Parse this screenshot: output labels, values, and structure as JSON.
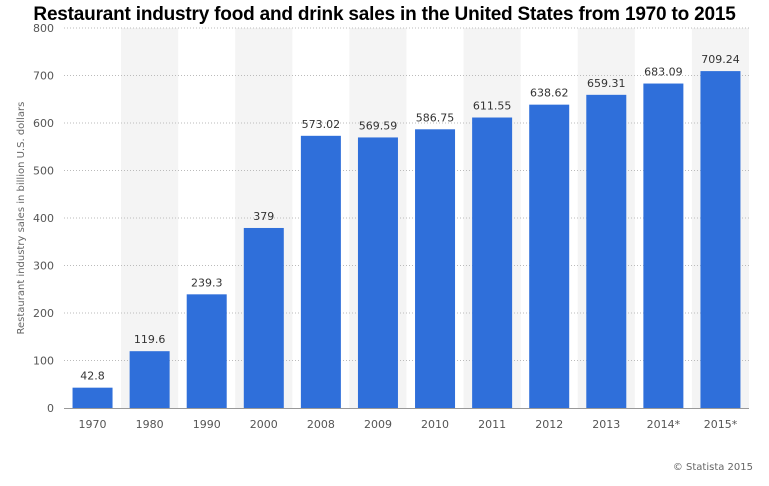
{
  "chart_data": {
    "type": "bar",
    "title": "Restaurant industry food and drink sales in the United States from 1970 to 2015",
    "ylabel": "Restaurant industry sales in billion U.S. dollars",
    "xlabel": "",
    "categories": [
      "1970",
      "1980",
      "1990",
      "2000",
      "2008",
      "2009",
      "2010",
      "2011",
      "2012",
      "2013",
      "2014*",
      "2015*"
    ],
    "values": [
      42.8,
      119.6,
      239.3,
      379,
      573.02,
      569.59,
      586.75,
      611.55,
      638.62,
      659.31,
      683.09,
      709.24
    ],
    "value_labels": [
      "42.8",
      "119.6",
      "239.3",
      "379",
      "573.02",
      "569.59",
      "586.75",
      "611.55",
      "638.62",
      "659.31",
      "683.09",
      "709.24"
    ],
    "ylim": [
      0,
      800
    ],
    "yticks": [
      0,
      100,
      200,
      300,
      400,
      500,
      600,
      700,
      800
    ],
    "grid": true,
    "bar_color": "#2f6fda"
  },
  "copyright": "© Statista 2015"
}
